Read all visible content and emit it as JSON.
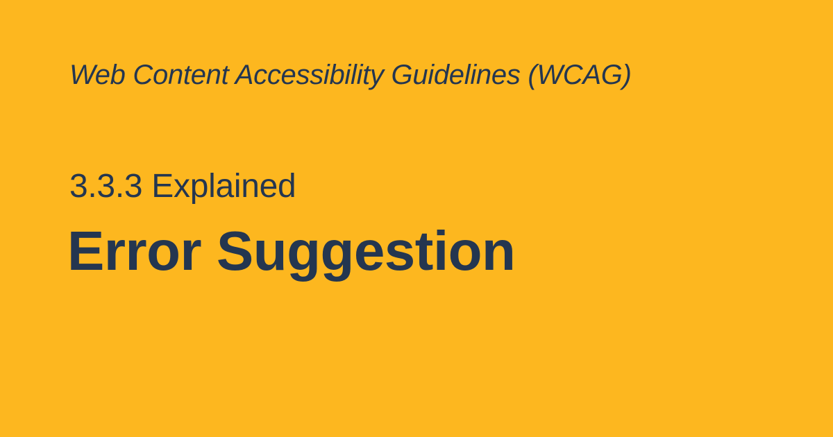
{
  "card": {
    "kicker": "Web Content Accessibility Guidelines (WCAG)",
    "subtitle": "3.3.3 Explained",
    "title": "Error Suggestion"
  },
  "colors": {
    "background": "#FDB71F",
    "text": "#243650"
  }
}
